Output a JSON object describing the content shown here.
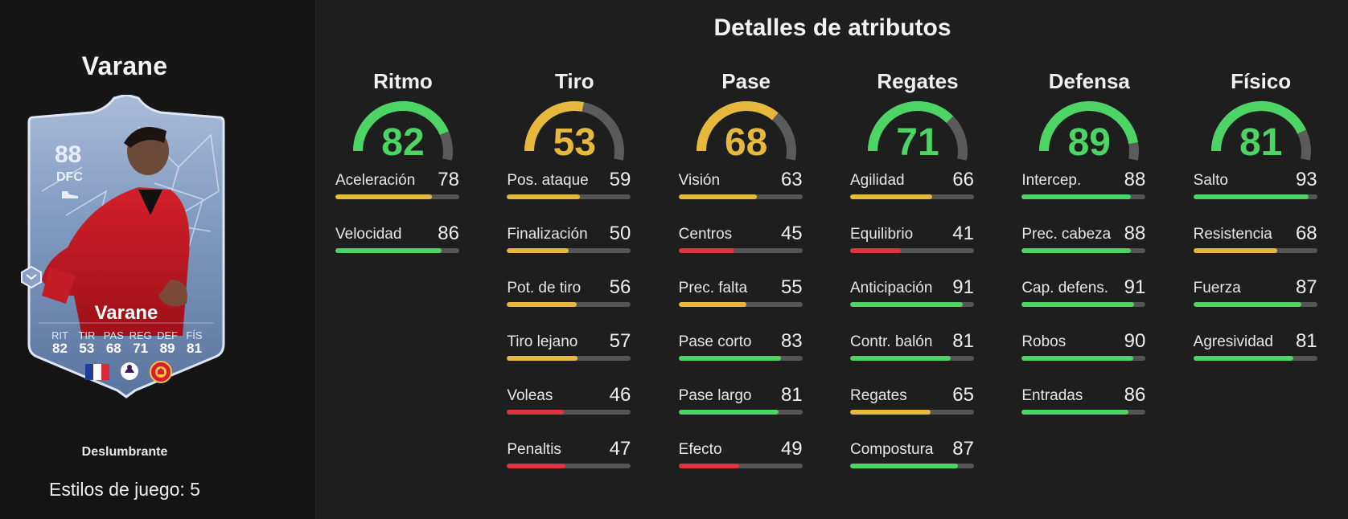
{
  "player": {
    "name": "Varane",
    "card_name": "Varane",
    "rating": "88",
    "position": "DFC",
    "card_stats": [
      {
        "label": "RIT",
        "value": "82"
      },
      {
        "label": "TIR",
        "value": "53"
      },
      {
        "label": "PAS",
        "value": "68"
      },
      {
        "label": "REG",
        "value": "71"
      },
      {
        "label": "DEF",
        "value": "89"
      },
      {
        "label": "FÍS",
        "value": "81"
      }
    ],
    "playstyle_label": "Deslumbrante",
    "playstyles_text": "Estilos de juego: 5"
  },
  "section_title": "Detalles de atributos",
  "colors": {
    "green": "#4cd464",
    "yellow": "#e6b83c",
    "red": "#e0343e",
    "track": "#555555"
  },
  "categories": [
    {
      "name": "Ritmo",
      "value": 82,
      "attributes": [
        {
          "name": "Aceleración",
          "value": 78
        },
        {
          "name": "Velocidad",
          "value": 86
        }
      ]
    },
    {
      "name": "Tiro",
      "value": 53,
      "attributes": [
        {
          "name": "Pos. ataque",
          "value": 59
        },
        {
          "name": "Finalización",
          "value": 50
        },
        {
          "name": "Pot. de tiro",
          "value": 56
        },
        {
          "name": "Tiro lejano",
          "value": 57
        },
        {
          "name": "Voleas",
          "value": 46
        },
        {
          "name": "Penaltis",
          "value": 47
        }
      ]
    },
    {
      "name": "Pase",
      "value": 68,
      "attributes": [
        {
          "name": "Visión",
          "value": 63
        },
        {
          "name": "Centros",
          "value": 45
        },
        {
          "name": "Prec. falta",
          "value": 55
        },
        {
          "name": "Pase corto",
          "value": 83
        },
        {
          "name": "Pase largo",
          "value": 81
        },
        {
          "name": "Efecto",
          "value": 49
        }
      ]
    },
    {
      "name": "Regates",
      "value": 71,
      "attributes": [
        {
          "name": "Agilidad",
          "value": 66
        },
        {
          "name": "Equilibrio",
          "value": 41
        },
        {
          "name": "Anticipación",
          "value": 91
        },
        {
          "name": "Contr. balón",
          "value": 81
        },
        {
          "name": "Regates",
          "value": 65
        },
        {
          "name": "Compostura",
          "value": 87
        }
      ]
    },
    {
      "name": "Defensa",
      "value": 89,
      "attributes": [
        {
          "name": "Intercep.",
          "value": 88
        },
        {
          "name": "Prec. cabeza",
          "value": 88
        },
        {
          "name": "Cap. defens.",
          "value": 91
        },
        {
          "name": "Robos",
          "value": 90
        },
        {
          "name": "Entradas",
          "value": 86
        }
      ]
    },
    {
      "name": "Físico",
      "value": 81,
      "attributes": [
        {
          "name": "Salto",
          "value": 93
        },
        {
          "name": "Resistencia",
          "value": 68
        },
        {
          "name": "Fuerza",
          "value": 87
        },
        {
          "name": "Agresividad",
          "value": 81
        }
      ]
    }
  ]
}
